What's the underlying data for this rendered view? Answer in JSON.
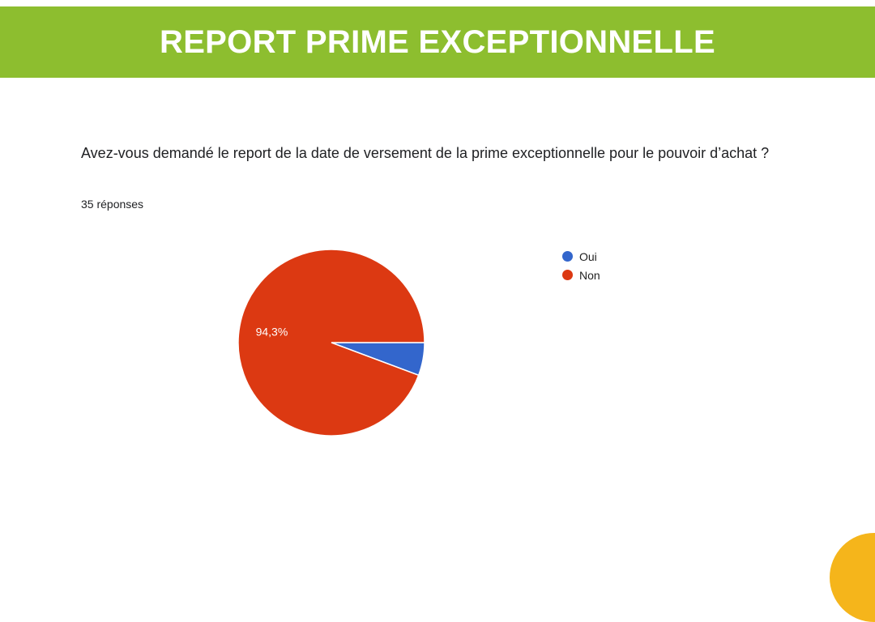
{
  "header": {
    "title": "REPORT PRIME EXCEPTIONNELLE",
    "color": "#8dbe2f"
  },
  "question": {
    "text": "Avez-vous demandé le report de la date de versement de la prime exceptionnelle pour le pouvoir d’achat ?",
    "responses": "35 réponses"
  },
  "chart_data": {
    "type": "pie",
    "categories": [
      "Oui",
      "Non"
    ],
    "values": [
      5.7,
      94.3
    ],
    "data_labels": [
      "",
      "94,3%"
    ],
    "colors": [
      "#3366cc",
      "#dc3912"
    ],
    "legend_position": "right"
  }
}
